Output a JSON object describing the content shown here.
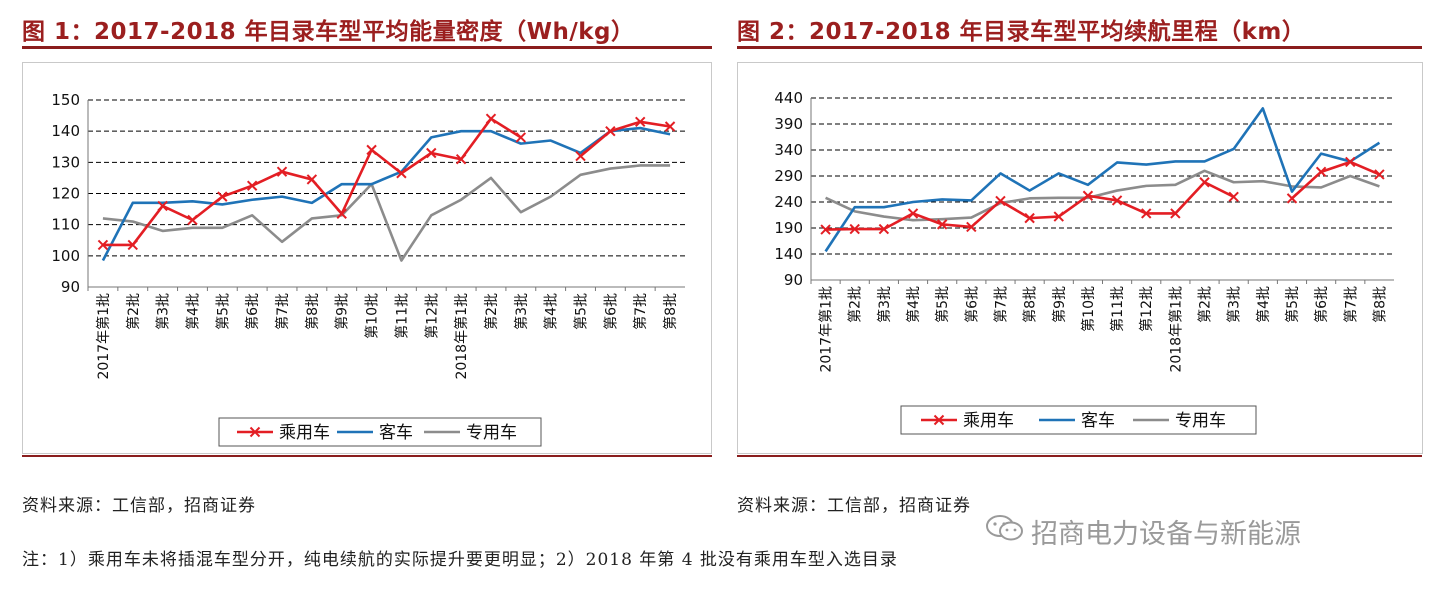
{
  "figure1": {
    "title": "图 1：2017-2018 年目录车型平均能量密度（Wh/kg）",
    "source": "资料来源：工信部，招商证券"
  },
  "figure2": {
    "title": "图 2：2017-2018 年目录车型平均续航里程（km）",
    "source": "资料来源：工信部，招商证券"
  },
  "note": "注：1）乘用车未将插混车型分开，纯电续航的实际提升要更明显；2）2018 年第 4 批没有乘用车型入选目录",
  "watermark": "招商电力设备与新能源",
  "colors": {
    "passenger": "#e31e24",
    "bus": "#1f73b7",
    "special": "#8c8c8c",
    "title": "#9b1f1f"
  },
  "chart_data": [
    {
      "type": "line",
      "title": "",
      "categories": [
        "2017年第1批",
        "第2批",
        "第3批",
        "第4批",
        "第5批",
        "第6批",
        "第7批",
        "第8批",
        "第9批",
        "第10批",
        "第11批",
        "第12批",
        "2018年第1批",
        "第2批",
        "第3批",
        "第4批",
        "第5批",
        "第6批",
        "第7批",
        "第8批"
      ],
      "ylim": [
        90,
        150
      ],
      "yticks": [
        90,
        100,
        110,
        120,
        130,
        140,
        150
      ],
      "grid": true,
      "legend_position": "bottom",
      "series": [
        {
          "name": "乘用车",
          "color": "#e31e24",
          "marker": "x",
          "values": [
            103.5,
            103.5,
            116,
            111.5,
            119,
            122.5,
            127,
            124.5,
            113.5,
            134,
            126.5,
            133,
            131,
            144,
            138,
            null,
            132,
            140,
            143,
            141.5
          ]
        },
        {
          "name": "客车",
          "color": "#1f73b7",
          "marker": "none",
          "values": [
            98.5,
            117,
            117,
            117.5,
            116.5,
            118,
            119,
            117,
            123,
            123,
            127,
            138,
            140,
            140,
            136,
            137,
            133,
            140,
            141,
            139
          ]
        },
        {
          "name": "专用车",
          "color": "#8c8c8c",
          "marker": "none",
          "values": [
            112,
            111,
            108,
            109,
            109,
            113,
            104.5,
            112,
            113,
            123,
            98.5,
            113,
            118,
            125,
            114,
            119,
            126,
            128,
            129,
            129
          ]
        }
      ]
    },
    {
      "type": "line",
      "title": "",
      "categories": [
        "2017年第1批",
        "第2批",
        "第3批",
        "第4批",
        "第5批",
        "第6批",
        "第7批",
        "第8批",
        "第9批",
        "第10批",
        "第11批",
        "第12批",
        "2018年第1批",
        "第2批",
        "第3批",
        "第4批",
        "第5批",
        "第6批",
        "第7批",
        "第8批"
      ],
      "ylim": [
        90,
        440
      ],
      "yticks": [
        90,
        140,
        190,
        240,
        290,
        340,
        390,
        440
      ],
      "grid": true,
      "legend_position": "bottom",
      "series": [
        {
          "name": "乘用车",
          "color": "#e31e24",
          "marker": "x",
          "values": [
            187,
            188,
            188,
            218,
            197,
            192,
            242,
            209,
            212,
            252,
            243,
            218,
            218,
            278,
            250,
            null,
            247,
            298,
            317,
            293
          ]
        },
        {
          "name": "客车",
          "color": "#1f73b7",
          "marker": "none",
          "values": [
            145,
            230,
            230,
            240,
            245,
            243,
            295,
            262,
            295,
            273,
            316,
            312,
            318,
            318,
            342,
            420,
            260,
            333,
            318,
            354
          ]
        },
        {
          "name": "专用车",
          "color": "#8c8c8c",
          "marker": "none",
          "values": [
            248,
            222,
            212,
            205,
            207,
            210,
            238,
            247,
            248,
            248,
            262,
            271,
            273,
            300,
            278,
            280,
            270,
            268,
            290,
            270
          ]
        }
      ]
    }
  ]
}
